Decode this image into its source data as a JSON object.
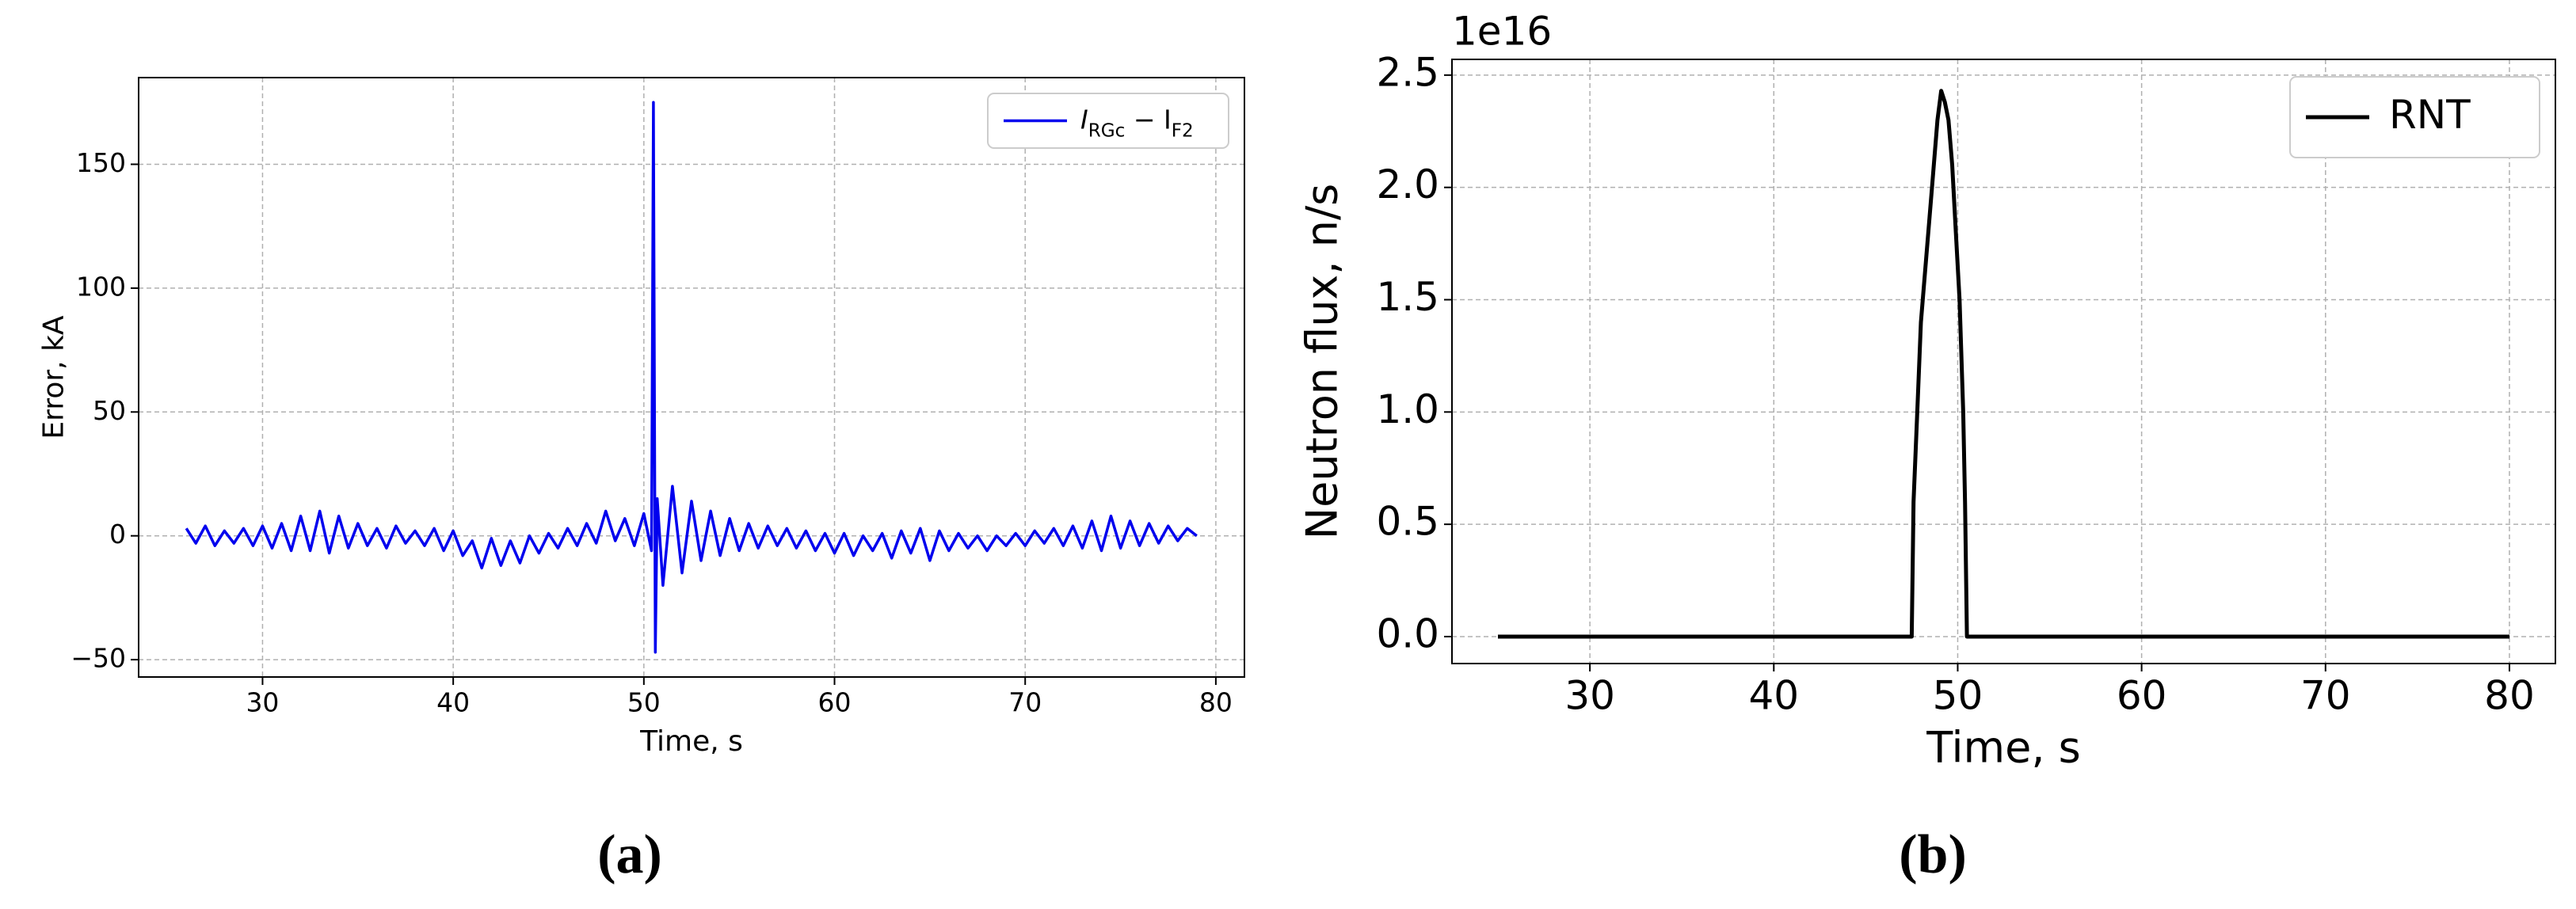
{
  "chart_data": [
    {
      "type": "line",
      "xlabel": "Time, s",
      "ylabel": "Error, kA",
      "caption": "(a)",
      "xlim": [
        23.5,
        81.5
      ],
      "ylim": [
        -57,
        185
      ],
      "xticks": [
        30,
        40,
        50,
        60,
        70,
        80
      ],
      "yticks": [
        {
          "value": -50,
          "label": "−50"
        },
        0,
        50,
        100,
        150
      ],
      "grid": true,
      "legend": "upper right",
      "series": [
        {
          "name": "I_{RGc} − I_{F2}",
          "color": "#0000ee",
          "x": [
            26,
            26.5,
            27,
            27.5,
            28,
            28.5,
            29,
            29.5,
            30,
            30.5,
            31,
            31.5,
            32,
            32.5,
            33,
            33.5,
            34,
            34.5,
            35,
            35.5,
            36,
            36.5,
            37,
            37.5,
            38,
            38.5,
            39,
            39.5,
            40,
            40.5,
            41,
            41.5,
            42,
            42.5,
            43,
            43.5,
            44,
            44.5,
            45,
            45.5,
            46,
            46.5,
            47,
            47.5,
            48,
            48.5,
            49,
            49.5,
            50,
            50.4,
            50.5,
            50.6,
            50.7,
            51,
            51.5,
            52,
            52.5,
            53,
            53.5,
            54,
            54.5,
            55,
            55.5,
            56,
            56.5,
            57,
            57.5,
            58,
            58.5,
            59,
            59.5,
            60,
            60.5,
            61,
            61.5,
            62,
            62.5,
            63,
            63.5,
            64,
            64.5,
            65,
            65.5,
            66,
            66.5,
            67,
            67.5,
            68,
            68.5,
            69,
            69.5,
            70,
            70.5,
            71,
            71.5,
            72,
            72.5,
            73,
            73.5,
            74,
            74.5,
            75,
            75.5,
            76,
            76.5,
            77,
            77.5,
            78,
            78.5,
            79
          ],
          "values": [
            3,
            -3,
            4,
            -4,
            2,
            -3,
            3,
            -4,
            4,
            -5,
            5,
            -6,
            8,
            -6,
            10,
            -7,
            8,
            -5,
            5,
            -4,
            3,
            -5,
            4,
            -3,
            2,
            -4,
            3,
            -6,
            2,
            -8,
            -2,
            -13,
            -1,
            -12,
            -2,
            -11,
            0,
            -7,
            1,
            -5,
            3,
            -4,
            5,
            -3,
            10,
            -2,
            7,
            -4,
            9,
            -6,
            175,
            -47,
            15,
            -20,
            20,
            -15,
            14,
            -10,
            10,
            -8,
            7,
            -6,
            5,
            -5,
            4,
            -4,
            3,
            -5,
            2,
            -6,
            1,
            -7,
            1,
            -8,
            0,
            -6,
            1,
            -9,
            2,
            -7,
            3,
            -10,
            2,
            -6,
            1,
            -5,
            0,
            -6,
            0,
            -4,
            1,
            -4,
            2,
            -3,
            3,
            -4,
            4,
            -5,
            6,
            -6,
            8,
            -5,
            6,
            -4,
            5,
            -3,
            4,
            -2,
            3,
            0
          ]
        }
      ]
    },
    {
      "type": "line",
      "xlabel": "Time, s",
      "ylabel": "Neutron flux, n/s",
      "caption": "(b)",
      "offset_text": "1e16",
      "xlim": [
        22.5,
        82.5
      ],
      "ylim": [
        -0.12,
        2.57
      ],
      "xticks": [
        30,
        40,
        50,
        60,
        70,
        80
      ],
      "yticks": [
        {
          "value": 0,
          "label": "0.0"
        },
        0.5,
        {
          "value": 1,
          "label": "1.0"
        },
        1.5,
        {
          "value": 2,
          "label": "2.0"
        },
        2.5
      ],
      "grid": true,
      "legend": "upper right",
      "series": [
        {
          "name": "RNT",
          "color": "#000000",
          "x": [
            25,
            47.5,
            47.6,
            47.8,
            48.0,
            48.3,
            48.6,
            48.9,
            49.1,
            49.3,
            49.5,
            49.7,
            49.9,
            50.1,
            50.3,
            50.4,
            50.5,
            80
          ],
          "values": [
            0,
            0,
            0.6,
            1.0,
            1.4,
            1.7,
            2.0,
            2.3,
            2.43,
            2.38,
            2.3,
            2.1,
            1.8,
            1.5,
            1.0,
            0.6,
            0,
            0
          ]
        }
      ]
    }
  ]
}
